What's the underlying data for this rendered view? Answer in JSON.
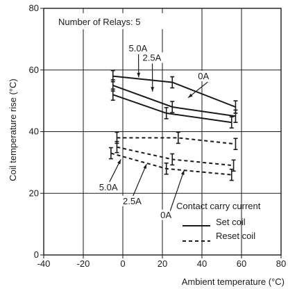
{
  "chart_data": {
    "type": "line",
    "xlabel": "Ambient temperature (°C)",
    "ylabel": "Coil temperature rise (°C)",
    "xlim": [
      -40,
      80
    ],
    "ylim": [
      0,
      80
    ],
    "x_ticks": [
      "-40",
      "-20",
      "0",
      "20",
      "40",
      "60",
      "80"
    ],
    "y_ticks": [
      "0",
      "20",
      "40",
      "60",
      "80"
    ],
    "grid": true,
    "annotation": "Number of Relays: 5",
    "legend": {
      "title": "Contact carry current",
      "placement": "bottom-right",
      "entries": [
        {
          "label": "Set coil",
          "style": "solid"
        },
        {
          "label": "Reset coil",
          "style": "dashed"
        }
      ]
    },
    "series": [
      {
        "label": "5.0A",
        "coil": "set",
        "style": "solid",
        "x": [
          -5,
          25,
          57
        ],
        "y": [
          58,
          56,
          48
        ],
        "err": [
          1.8,
          1.8,
          2
        ]
      },
      {
        "label": "2.5A",
        "coil": "set",
        "style": "solid",
        "x": [
          -5,
          25,
          57
        ],
        "y": [
          55,
          48,
          45
        ],
        "err": [
          1.8,
          1.8,
          2
        ]
      },
      {
        "label": "0A",
        "coil": "set",
        "style": "solid",
        "x": [
          -5,
          22,
          55
        ],
        "y": [
          52,
          46,
          43
        ],
        "err": [
          1.8,
          1.8,
          1.8
        ]
      },
      {
        "label": "5.0A",
        "coil": "reset",
        "style": "dashed",
        "x": [
          -3,
          28,
          57
        ],
        "y": [
          38,
          38,
          36
        ],
        "err": [
          1.8,
          1.8,
          1.8
        ]
      },
      {
        "label": "2.5A",
        "coil": "reset",
        "style": "dashed",
        "x": [
          -3,
          25,
          56
        ],
        "y": [
          35,
          31,
          29
        ],
        "err": [
          1.8,
          1.8,
          1.8
        ]
      },
      {
        "label": "0A",
        "coil": "reset",
        "style": "dashed",
        "x": [
          -6,
          22,
          55
        ],
        "y": [
          33,
          28,
          26
        ],
        "err": [
          1.8,
          1.8,
          1.8
        ]
      }
    ],
    "series_labels": [
      {
        "text": "5.0A",
        "at": [
          3,
          66
        ],
        "arrow_to": [
          8,
          57.6
        ]
      },
      {
        "text": "2.5A",
        "at": [
          10,
          63
        ],
        "arrow_to": [
          15,
          53
        ]
      },
      {
        "text": "0A",
        "at": [
          38,
          57
        ],
        "arrow_to": [
          33,
          51
        ]
      },
      {
        "text": "5.0A",
        "at": [
          -12,
          21
        ],
        "arrow_to": [
          -1,
          31
        ]
      },
      {
        "text": "2.5A",
        "at": [
          0,
          16.5
        ],
        "arrow_to": [
          12,
          29.5
        ]
      },
      {
        "text": "0A",
        "at": [
          19,
          12
        ],
        "arrow_to": [
          31,
          27.5
        ]
      }
    ]
  }
}
